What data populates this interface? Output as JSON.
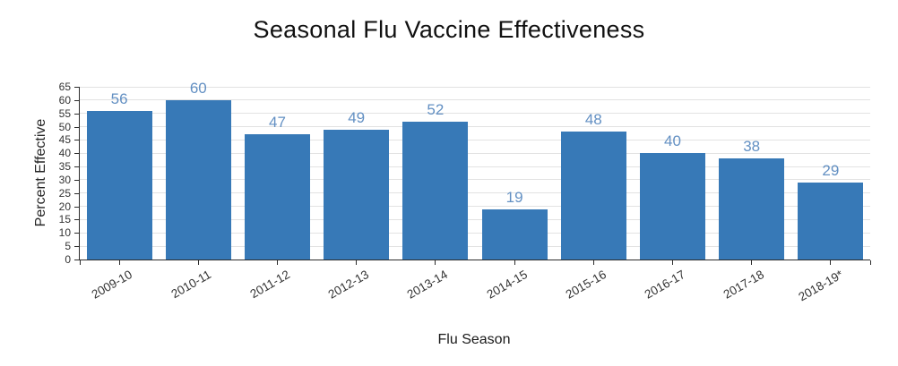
{
  "chart_data": {
    "type": "bar",
    "title": "Seasonal Flu Vaccine Effectiveness",
    "xlabel": "Flu Season",
    "ylabel": "Percent Effective",
    "categories": [
      "2009-10",
      "2010-11",
      "2011-12",
      "2012-13",
      "2013-14",
      "2014-15",
      "2015-16",
      "2016-17",
      "2017-18",
      "2018-19*"
    ],
    "values": [
      56,
      60,
      47,
      49,
      52,
      19,
      48,
      40,
      38,
      29
    ],
    "ylim": [
      0,
      65
    ],
    "ytick_step": 5,
    "grid": "horizontal",
    "legend_position": "none",
    "bar_value_labels": true,
    "x_tick_rotation_deg": 30,
    "colors": {
      "bar_fill": "#3779B7",
      "value_label": "#6390C3",
      "gridline": "#E2E2E2",
      "axis_line": "#2B2B2B",
      "tick_label": "#333333",
      "title_text": "#111111",
      "background": "#FFFFFF"
    }
  }
}
